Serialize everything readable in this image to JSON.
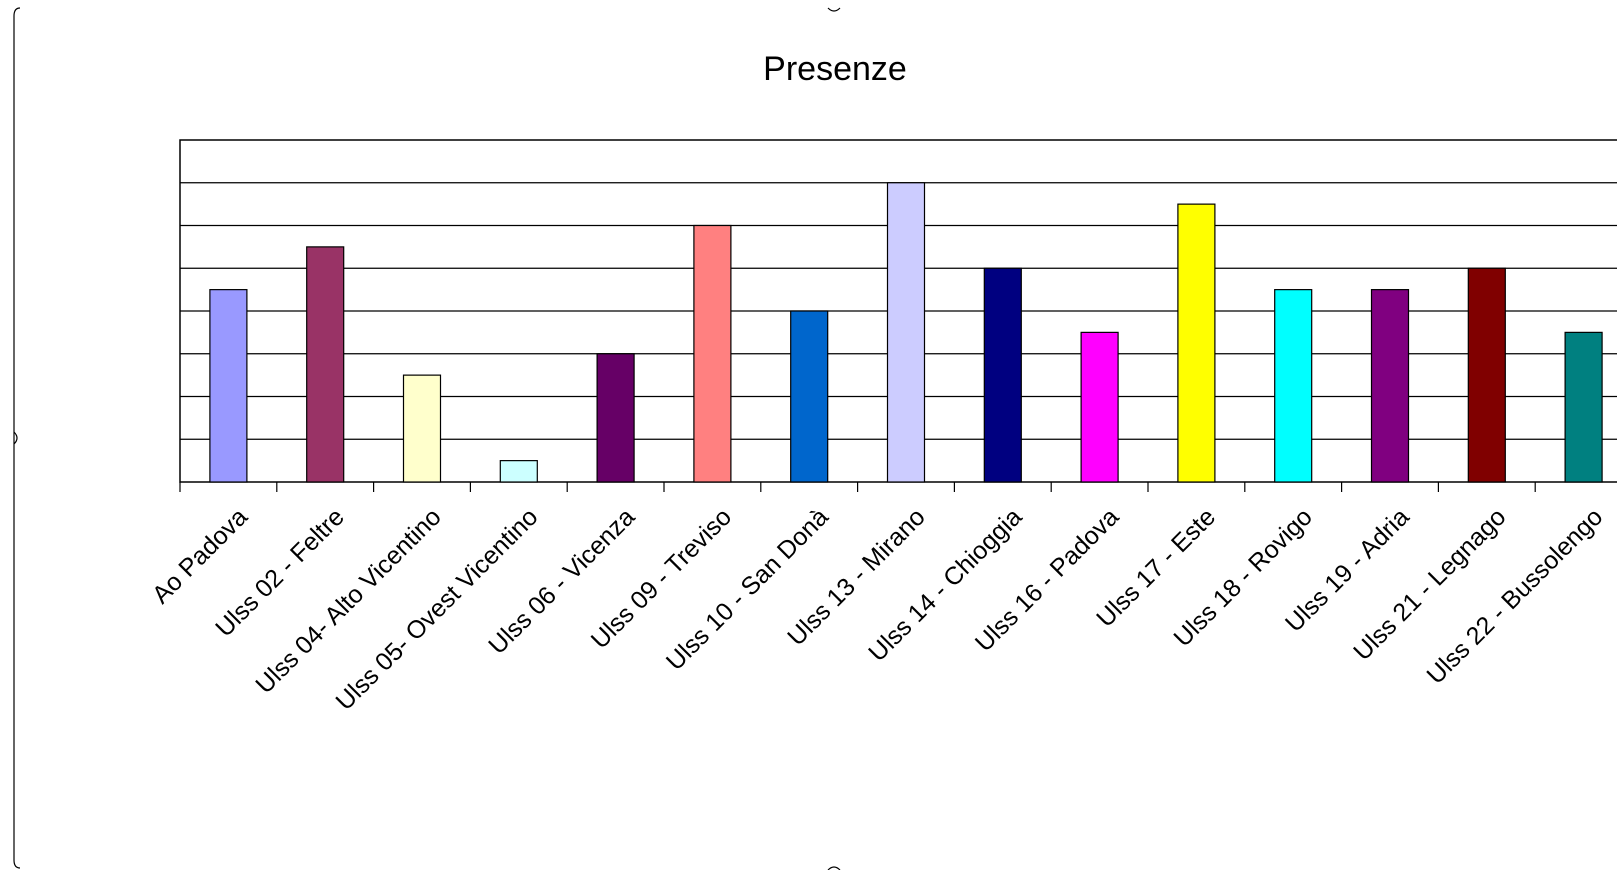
{
  "chart_data": {
    "type": "bar",
    "title": "Presenze",
    "xlabel": "",
    "ylabel": "",
    "ylim": [
      0,
      8
    ],
    "grid": true,
    "legend": "none",
    "categories": [
      "Ao Padova",
      "Ulss 02 - Feltre",
      "Ulss 04- Alto Vicentino",
      "Ulss 05- Ovest Vicentino",
      "Ulss 06 - Vicenza",
      "Ulss 09 - Treviso",
      "Ulss 10 - San Donà",
      "Ulss 13 - Mirano",
      "Ulss 14 - Chioggia",
      "Ulss 16 - Padova",
      "Ulss 17 - Este",
      "Ulss 18 - Rovigo",
      "Ulss 19 - Adria",
      "Ulss 21 - Legnago",
      "Ulss 22 - Bussolengo"
    ],
    "values": [
      4.5,
      5.5,
      2.5,
      0.5,
      3,
      6,
      4,
      7,
      5,
      3.5,
      6.5,
      4.5,
      4.5,
      5,
      3.5
    ],
    "colors": [
      "#9999ff",
      "#993366",
      "#ffffcc",
      "#ccffff",
      "#660066",
      "#ff8080",
      "#0066cc",
      "#ccccff",
      "#000080",
      "#ff00ff",
      "#ffff00",
      "#00ffff",
      "#800080",
      "#800000",
      "#008080"
    ]
  }
}
